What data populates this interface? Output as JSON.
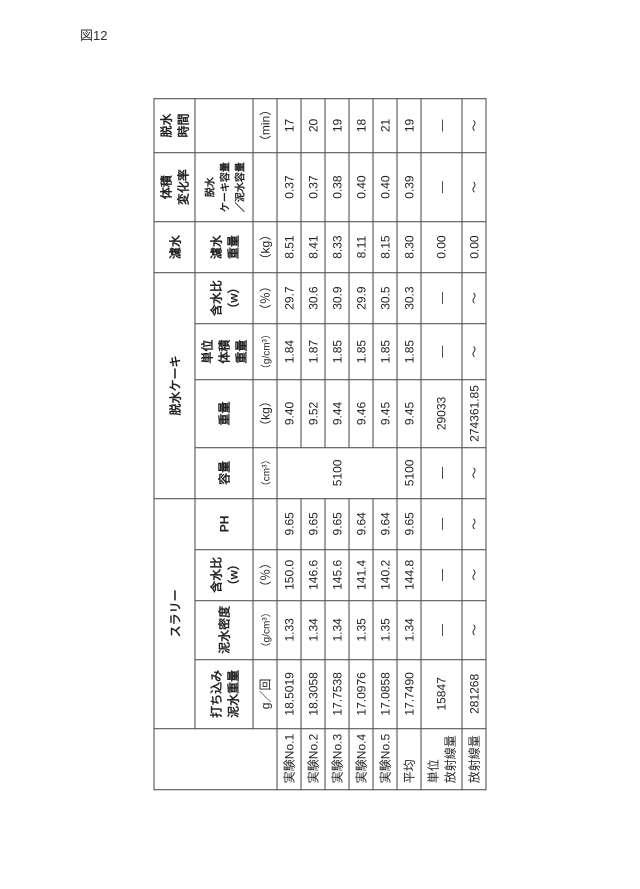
{
  "figureLabel": "図12",
  "groupHeaders": {
    "blank": "",
    "slurry": "スラリー",
    "dewateredCake": "脱水ケーキ",
    "filtrate": "濾水",
    "volumeChange": "体積\n変化率",
    "dewaterTime": "脱水\n時間"
  },
  "subHeaders": {
    "pourMudWeight": "打ち込み\n泥水重量",
    "mudDensity": "泥水密度",
    "waterRatioW": "含水比\n（w）",
    "ph": "PH",
    "volume": "容量",
    "weight": "重量",
    "unitVolumeWeight": "単位\n体積\n重量",
    "waterRatioW2": "含水比\n（w）",
    "filtrateWeight": "濾水\n重量",
    "cakeRatio": "脱水\nケーキ容量\n／泥水容量"
  },
  "units": {
    "gPerTime": "g／回",
    "gcm3": "（g/cm³）",
    "pct": "（％）",
    "blank": "",
    "cm3": "（cm³）",
    "kg": "（kg）",
    "gcm3b": "（g/cm³）",
    "pct2": "（％）",
    "kg2": "（kg）",
    "blank2": "",
    "min": "（min）"
  },
  "rows": [
    {
      "label": "実験No.1",
      "c1": "18.5019",
      "c2": "1.33",
      "c3": "150.0",
      "c4": "9.65",
      "c6": "9.40",
      "c7": "1.84",
      "c8": "29.7",
      "c9": "8.51",
      "c10": "0.37",
      "c11": "17"
    },
    {
      "label": "実験No.2",
      "c1": "18.3058",
      "c2": "1.34",
      "c3": "146.6",
      "c4": "9.65",
      "c6": "9.52",
      "c7": "1.87",
      "c8": "30.6",
      "c9": "8.41",
      "c10": "0.37",
      "c11": "20"
    },
    {
      "label": "実験No.3",
      "c1": "17.7538",
      "c2": "1.34",
      "c3": "145.6",
      "c4": "9.65",
      "c6": "9.44",
      "c7": "1.85",
      "c8": "30.9",
      "c9": "8.33",
      "c10": "0.38",
      "c11": "19"
    },
    {
      "label": "実験No.4",
      "c1": "17.0976",
      "c2": "1.35",
      "c3": "141.4",
      "c4": "9.64",
      "c6": "9.46",
      "c7": "1.85",
      "c8": "29.9",
      "c9": "8.11",
      "c10": "0.40",
      "c11": "18"
    },
    {
      "label": "実験No.5",
      "c1": "17.0858",
      "c2": "1.35",
      "c3": "140.2",
      "c4": "9.64",
      "c6": "9.45",
      "c7": "1.85",
      "c8": "30.5",
      "c9": "8.15",
      "c10": "0.40",
      "c11": "21"
    }
  ],
  "volumeMerged": "5100",
  "avg": {
    "label": "平均",
    "c1": "17.7490",
    "c2": "1.34",
    "c3": "144.8",
    "c4": "9.65",
    "c5": "5100",
    "c6": "9.45",
    "c7": "1.85",
    "c8": "30.3",
    "c9": "8.30",
    "c10": "0.39",
    "c11": "19"
  },
  "unitRad": {
    "label": "単位\n放射線量",
    "c1": "15847",
    "c2": "—",
    "c3": "—",
    "c4": "—",
    "c5": "—",
    "c6": "29033",
    "c7": "—",
    "c8": "—",
    "c9": "0.00",
    "c10": "—",
    "c11": "—"
  },
  "rad": {
    "label": "放射線量",
    "c1": "281268",
    "c2": "～",
    "c3": "～",
    "c4": "～",
    "c5": "～",
    "c6": "274361.85",
    "c7": "～",
    "c8": "～",
    "c9": "0.00",
    "c10": "～",
    "c11": "～"
  }
}
